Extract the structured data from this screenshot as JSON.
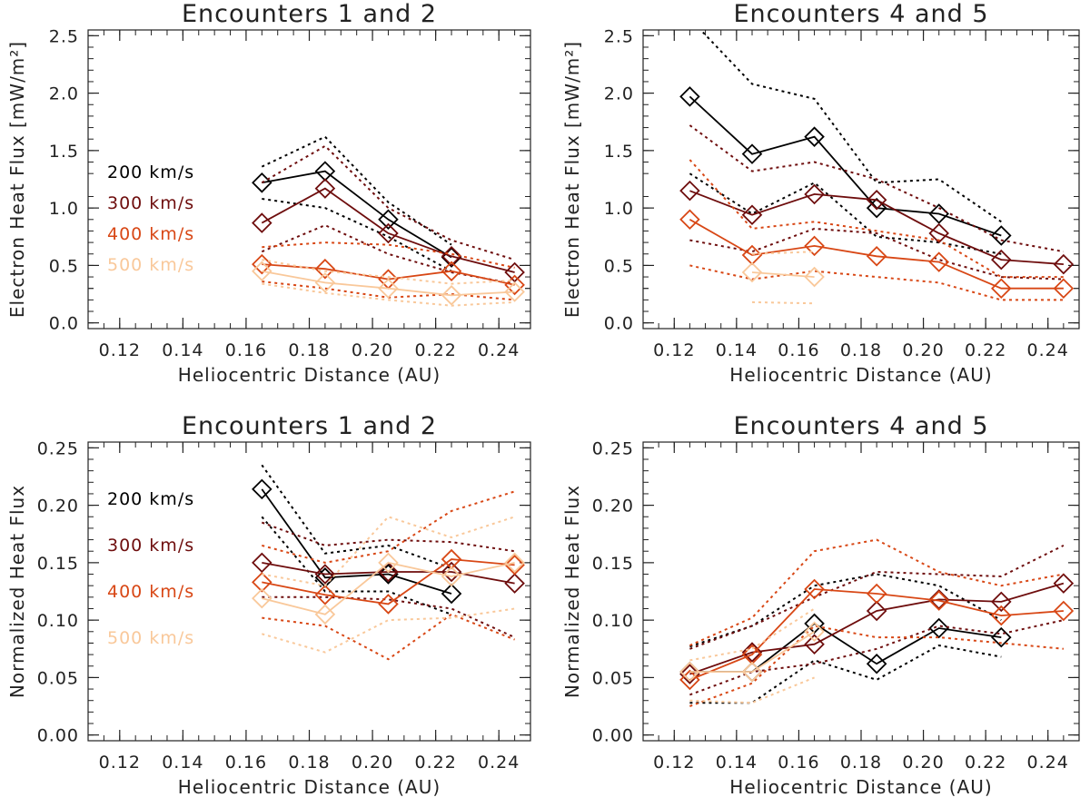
{
  "colors": {
    "200": "#000000",
    "300": "#6e0d0d",
    "400": "#d84715",
    "500": "#f9c89a"
  },
  "chart_data": [
    {
      "type": "line",
      "title": "Encounters 1 and 2",
      "xlabel": "Heliocentric Distance (AU)",
      "ylabel": "Electron Heat Flux [mW/m²]",
      "xlim": [
        0.11,
        0.25
      ],
      "ylim": [
        -0.05,
        2.55
      ],
      "xticks": [
        "0.12",
        "0.14",
        "0.16",
        "0.18",
        "0.20",
        "0.22",
        "0.24"
      ],
      "yticks": [
        "0.0",
        "0.5",
        "1.0",
        "1.5",
        "2.0",
        "2.5"
      ],
      "legend": {
        "placement": "left",
        "labels": [
          "200 km/s",
          "300 km/s",
          "400 km/s",
          "500 km/s"
        ]
      },
      "series": [
        {
          "name": "200 km/s",
          "key": "200",
          "x": [
            0.165,
            0.185,
            0.205,
            0.225
          ],
          "values": [
            1.22,
            1.32,
            0.9,
            0.57
          ],
          "upper": [
            1.36,
            1.62,
            1.05,
            0.68
          ],
          "lower": [
            1.08,
            1.0,
            0.75,
            0.45
          ]
        },
        {
          "name": "300 km/s",
          "key": "300",
          "x": [
            0.165,
            0.185,
            0.205,
            0.225,
            0.245
          ],
          "values": [
            0.87,
            1.17,
            0.78,
            0.58,
            0.44
          ],
          "upper": [
            1.22,
            1.54,
            1.0,
            0.72,
            0.55
          ],
          "lower": [
            0.62,
            0.85,
            0.6,
            0.44,
            0.34
          ]
        },
        {
          "name": "400 km/s",
          "key": "400",
          "x": [
            0.165,
            0.185,
            0.205,
            0.225,
            0.245
          ],
          "values": [
            0.51,
            0.47,
            0.38,
            0.45,
            0.33
          ],
          "upper": [
            0.66,
            0.7,
            0.68,
            0.6,
            0.48
          ],
          "lower": [
            0.36,
            0.3,
            0.22,
            0.25,
            0.2
          ]
        },
        {
          "name": "500 km/s",
          "key": "500",
          "x": [
            0.165,
            0.185,
            0.205,
            0.225,
            0.245
          ],
          "values": [
            0.45,
            0.35,
            0.3,
            0.24,
            0.27
          ],
          "upper": [
            0.55,
            0.45,
            0.4,
            0.34,
            0.37
          ],
          "lower": [
            0.34,
            0.26,
            0.2,
            0.15,
            0.18
          ]
        }
      ]
    },
    {
      "type": "line",
      "title": "Encounters 4 and 5",
      "xlabel": "Heliocentric Distance (AU)",
      "ylabel": "Electron Heat Flux [mW/m²]",
      "xlim": [
        0.11,
        0.25
      ],
      "ylim": [
        -0.05,
        2.55
      ],
      "xticks": [
        "0.12",
        "0.14",
        "0.16",
        "0.18",
        "0.20",
        "0.22",
        "0.24"
      ],
      "yticks": [
        "0.0",
        "0.5",
        "1.0",
        "1.5",
        "2.0",
        "2.5"
      ],
      "series": [
        {
          "name": "200 km/s",
          "key": "200",
          "x": [
            0.125,
            0.145,
            0.165,
            0.185,
            0.205,
            0.225
          ],
          "values": [
            1.97,
            1.47,
            1.62,
            1.0,
            0.95,
            0.76
          ],
          "upper": [
            2.65,
            2.08,
            1.95,
            1.22,
            1.25,
            0.88
          ],
          "lower": [
            1.3,
            0.95,
            1.22,
            0.75,
            0.7,
            0.6
          ]
        },
        {
          "name": "300 km/s",
          "key": "300",
          "x": [
            0.125,
            0.145,
            0.165,
            0.185,
            0.205,
            0.225,
            0.245
          ],
          "values": [
            1.15,
            0.94,
            1.12,
            1.07,
            0.78,
            0.55,
            0.51
          ],
          "upper": [
            1.72,
            1.32,
            1.4,
            1.25,
            1.0,
            0.72,
            0.62
          ],
          "lower": [
            0.72,
            0.62,
            0.82,
            0.78,
            0.55,
            0.4,
            0.38
          ]
        },
        {
          "name": "400 km/s",
          "key": "400",
          "x": [
            0.125,
            0.145,
            0.165,
            0.185,
            0.205,
            0.225,
            0.245
          ],
          "values": [
            0.9,
            0.59,
            0.67,
            0.58,
            0.53,
            0.3,
            0.3
          ],
          "upper": [
            1.42,
            0.82,
            0.88,
            0.8,
            0.72,
            0.4,
            0.4
          ],
          "lower": [
            0.5,
            0.38,
            0.45,
            0.4,
            0.35,
            0.2,
            0.2
          ]
        },
        {
          "name": "500 km/s",
          "key": "500",
          "x": [
            0.145,
            0.165
          ],
          "values": [
            0.44,
            0.4
          ],
          "upper": [
            0.6,
            0.62
          ],
          "lower": [
            0.18,
            0.17
          ]
        }
      ]
    },
    {
      "type": "line",
      "title": "Encounters 1 and 2",
      "xlabel": "Heliocentric Distance (AU)",
      "ylabel": "Normalized Heat Flux",
      "xlim": [
        0.11,
        0.25
      ],
      "ylim": [
        -0.005,
        0.255
      ],
      "xticks": [
        "0.12",
        "0.14",
        "0.16",
        "0.18",
        "0.20",
        "0.22",
        "0.24"
      ],
      "yticks": [
        "0.00",
        "0.05",
        "0.10",
        "0.15",
        "0.20",
        "0.25"
      ],
      "legend": {
        "placement": "left",
        "labels": [
          "200 km/s",
          "300 km/s",
          "400 km/s",
          "500 km/s"
        ]
      },
      "series": [
        {
          "name": "200 km/s",
          "key": "200",
          "x": [
            0.165,
            0.185,
            0.205,
            0.225
          ],
          "values": [
            0.214,
            0.137,
            0.14,
            0.123
          ],
          "upper": [
            0.235,
            0.158,
            0.165,
            0.145
          ],
          "lower": [
            0.19,
            0.125,
            0.125,
            0.105
          ]
        },
        {
          "name": "300 km/s",
          "key": "300",
          "x": [
            0.165,
            0.185,
            0.205,
            0.225,
            0.245
          ],
          "values": [
            0.15,
            0.14,
            0.142,
            0.142,
            0.132
          ],
          "upper": [
            0.185,
            0.165,
            0.17,
            0.168,
            0.16
          ],
          "lower": [
            0.12,
            0.12,
            0.118,
            0.11,
            0.085
          ]
        },
        {
          "name": "400 km/s",
          "key": "400",
          "x": [
            0.165,
            0.185,
            0.205,
            0.225,
            0.245
          ],
          "values": [
            0.133,
            0.122,
            0.114,
            0.153,
            0.148
          ],
          "upper": [
            0.165,
            0.15,
            0.16,
            0.195,
            0.212
          ],
          "lower": [
            0.102,
            0.095,
            0.066,
            0.105,
            0.083
          ]
        },
        {
          "name": "500 km/s",
          "key": "500",
          "x": [
            0.165,
            0.185,
            0.205,
            0.225,
            0.245
          ],
          "values": [
            0.119,
            0.105,
            0.15,
            0.138,
            0.15
          ],
          "upper": [
            0.14,
            0.13,
            0.19,
            0.172,
            0.19
          ],
          "lower": [
            0.088,
            0.072,
            0.1,
            0.102,
            0.11
          ]
        }
      ]
    },
    {
      "type": "line",
      "title": "Encounters 4 and 5",
      "xlabel": "Heliocentric Distance (AU)",
      "ylabel": "Normalized Heat Flux",
      "xlim": [
        0.11,
        0.25
      ],
      "ylim": [
        -0.005,
        0.255
      ],
      "xticks": [
        "0.12",
        "0.14",
        "0.16",
        "0.18",
        "0.20",
        "0.22",
        "0.24"
      ],
      "yticks": [
        "0.00",
        "0.05",
        "0.10",
        "0.15",
        "0.20",
        "0.25"
      ],
      "series": [
        {
          "name": "200 km/s",
          "key": "200",
          "x": [
            0.125,
            0.145,
            0.165,
            0.185,
            0.205,
            0.225
          ],
          "values": [
            0.055,
            0.055,
            0.097,
            0.062,
            0.093,
            0.085
          ],
          "upper": [
            0.077,
            0.095,
            0.13,
            0.14,
            0.13,
            0.1
          ],
          "lower": [
            0.028,
            0.028,
            0.065,
            0.048,
            0.078,
            0.068
          ]
        },
        {
          "name": "300 km/s",
          "key": "300",
          "x": [
            0.125,
            0.145,
            0.165,
            0.185,
            0.205,
            0.225,
            0.245
          ],
          "values": [
            0.053,
            0.072,
            0.079,
            0.108,
            0.118,
            0.116,
            0.132
          ],
          "upper": [
            0.075,
            0.095,
            0.12,
            0.142,
            0.14,
            0.138,
            0.165
          ],
          "lower": [
            0.035,
            0.055,
            0.062,
            0.075,
            0.095,
            0.088,
            0.1
          ]
        },
        {
          "name": "400 km/s",
          "key": "400",
          "x": [
            0.125,
            0.145,
            0.165,
            0.185,
            0.205,
            0.225,
            0.245
          ],
          "values": [
            0.048,
            0.07,
            0.127,
            0.123,
            0.117,
            0.104,
            0.108
          ],
          "upper": [
            0.078,
            0.102,
            0.16,
            0.17,
            0.142,
            0.13,
            0.14
          ],
          "lower": [
            0.025,
            0.045,
            0.095,
            0.085,
            0.085,
            0.08,
            0.075
          ]
        },
        {
          "name": "500 km/s",
          "key": "500",
          "x": [
            0.125,
            0.145,
            0.165
          ],
          "values": [
            0.055,
            0.055,
            0.09
          ],
          "upper": [
            0.065,
            0.075,
            0.11
          ],
          "lower": [
            0.03,
            0.028,
            0.05
          ]
        }
      ]
    }
  ]
}
